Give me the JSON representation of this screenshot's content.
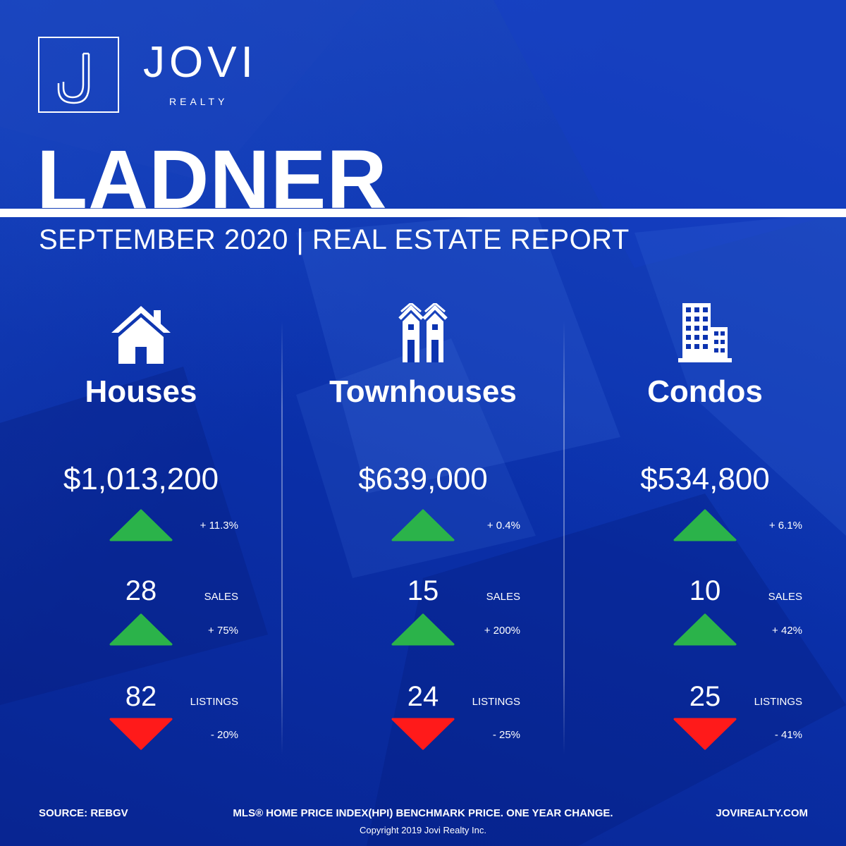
{
  "brand": {
    "name": "JOVI",
    "sub": "REALTY",
    "logo_letter": "J"
  },
  "report": {
    "city": "LADNER",
    "subtitle": "SEPTEMBER 2020 | REAL ESTATE REPORT"
  },
  "colors": {
    "background": "#0b33b0",
    "up": "#2bb34a",
    "down": "#ff1a1a"
  },
  "categories": [
    {
      "icon": "house-icon",
      "name": "Houses",
      "price": "$1,013,200",
      "price_change": {
        "text": "+ 11.3%",
        "direction": "up"
      },
      "sales": {
        "value": "28",
        "label": "SALES",
        "change": "+ 75%",
        "direction": "up"
      },
      "listings": {
        "value": "82",
        "label": "LISTINGS",
        "change": "- 20%",
        "direction": "down"
      }
    },
    {
      "icon": "townhouse-icon",
      "name": "Townhouses",
      "price": "$639,000",
      "price_change": {
        "text": "+ 0.4%",
        "direction": "up"
      },
      "sales": {
        "value": "15",
        "label": "SALES",
        "change": "+ 200%",
        "direction": "up"
      },
      "listings": {
        "value": "24",
        "label": "LISTINGS",
        "change": "- 25%",
        "direction": "down"
      }
    },
    {
      "icon": "condo-building-icon",
      "name": "Condos",
      "price": "$534,800",
      "price_change": {
        "text": "+ 6.1%",
        "direction": "up"
      },
      "sales": {
        "value": "10",
        "label": "SALES",
        "change": "+ 42%",
        "direction": "up"
      },
      "listings": {
        "value": "25",
        "label": "LISTINGS",
        "change": "- 41%",
        "direction": "down"
      }
    }
  ],
  "footer": {
    "source": "SOURCE:  REBGV",
    "note": "MLS® HOME PRICE INDEX(HPI) BENCHMARK PRICE. ONE YEAR CHANGE.",
    "website": "JOVIREALTY.COM",
    "copyright": "Copyright 2019 Jovi Realty Inc."
  }
}
